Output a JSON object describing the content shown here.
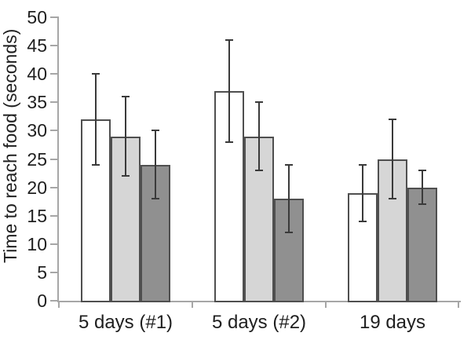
{
  "chart_data": {
    "type": "bar",
    "title": "",
    "ylabel": "Time to reach food (seconds)",
    "xlabel": "",
    "categories": [
      "5 days (#1)",
      "5 days (#2)",
      "19 days"
    ],
    "series": [
      {
        "name": "white-bars",
        "fill": "#ffffff",
        "values": [
          32,
          37,
          19
        ],
        "errors": [
          8,
          9,
          5
        ]
      },
      {
        "name": "light-gray-bars",
        "fill": "#d6d6d6",
        "values": [
          29,
          29,
          25
        ],
        "errors": [
          7,
          6,
          7
        ]
      },
      {
        "name": "dark-gray-bars",
        "fill": "#909090",
        "values": [
          24,
          18,
          20
        ],
        "errors": [
          6,
          6,
          3
        ]
      }
    ],
    "error_bounds": {
      "white-bars": [
        [
          24,
          40
        ],
        [
          28,
          46
        ],
        [
          14,
          24
        ]
      ],
      "light-gray-bars": [
        [
          22,
          36
        ],
        [
          23,
          35
        ],
        [
          18,
          32
        ]
      ],
      "dark-gray-bars": [
        [
          18,
          30
        ],
        [
          12,
          24
        ],
        [
          17,
          23
        ]
      ]
    },
    "ylim": [
      0,
      50
    ],
    "yticks": [
      0,
      5,
      10,
      15,
      20,
      25,
      30,
      35,
      40,
      45,
      50
    ],
    "grid": false,
    "legend": "none",
    "colors": {
      "bar_border": "#4f4f4f",
      "error_bar": "#3a3a3a",
      "axis": "#a6a6a6",
      "text": "#1f1f1f",
      "background": "#ffffff"
    }
  }
}
